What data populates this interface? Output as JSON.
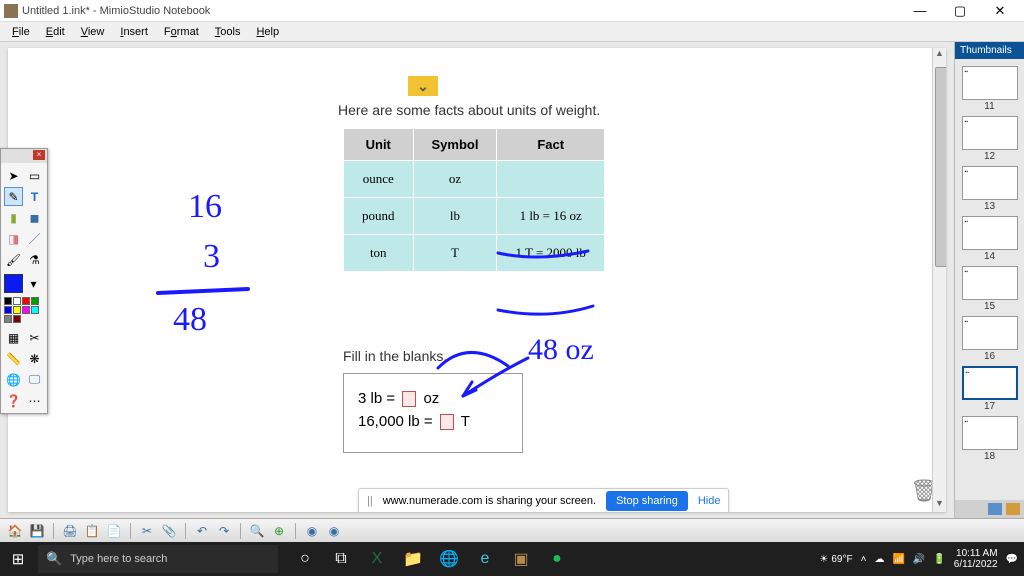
{
  "window": {
    "title": "Untitled 1.ink* - MimioStudio Notebook",
    "min": "—",
    "max": "▢",
    "close": "✕"
  },
  "menu": {
    "items": [
      "File",
      "Edit",
      "View",
      "Insert",
      "Format",
      "Tools",
      "Help"
    ]
  },
  "content": {
    "intro": "Here are some facts about units of weight.",
    "table": {
      "headers": [
        "Unit",
        "Symbol",
        "Fact"
      ],
      "rows": [
        {
          "unit": "ounce",
          "symbol": "oz",
          "fact": ""
        },
        {
          "unit": "pound",
          "symbol": "lb",
          "fact": "1 lb = 16 oz"
        },
        {
          "unit": "ton",
          "symbol": "T",
          "fact": "1 T = 2000 lb"
        }
      ]
    },
    "fill": "Fill in the blanks.",
    "blanks": {
      "line1_pre": "3 lb =",
      "line1_post": "oz",
      "line2_pre": "16,000 lb =",
      "line2_post": "T"
    },
    "handwriting": {
      "n1": "16",
      "n2": "3",
      "n3": "48",
      "ans": "48 oz"
    }
  },
  "thumbnails": {
    "header": "Thumbnails",
    "items": [
      11,
      12,
      13,
      14,
      15,
      16,
      17,
      18
    ],
    "active": 17
  },
  "toolbox": {
    "colors": {
      "primary": "#0a1af0",
      "row": [
        "#000000",
        "#ffffff",
        "#ff0000",
        "#00a000",
        "#0000ff",
        "#ffff00",
        "#ff00ff",
        "#00ffff",
        "#808080",
        "#800000"
      ]
    }
  },
  "share": {
    "text": "www.numerade.com is sharing your screen.",
    "stop": "Stop sharing",
    "hide": "Hide"
  },
  "taskbar": {
    "search_placeholder": "Type here to search",
    "temp": "69°F",
    "time": "10:11 AM",
    "date": "6/11/2022"
  },
  "styling": {
    "ink_color": "#1a1aff",
    "accent": "#0b5394",
    "table_header_bg": "#d0d0d0",
    "table_cell_bg": "#bfe8e8",
    "chevron_bg": "#f1c232"
  }
}
